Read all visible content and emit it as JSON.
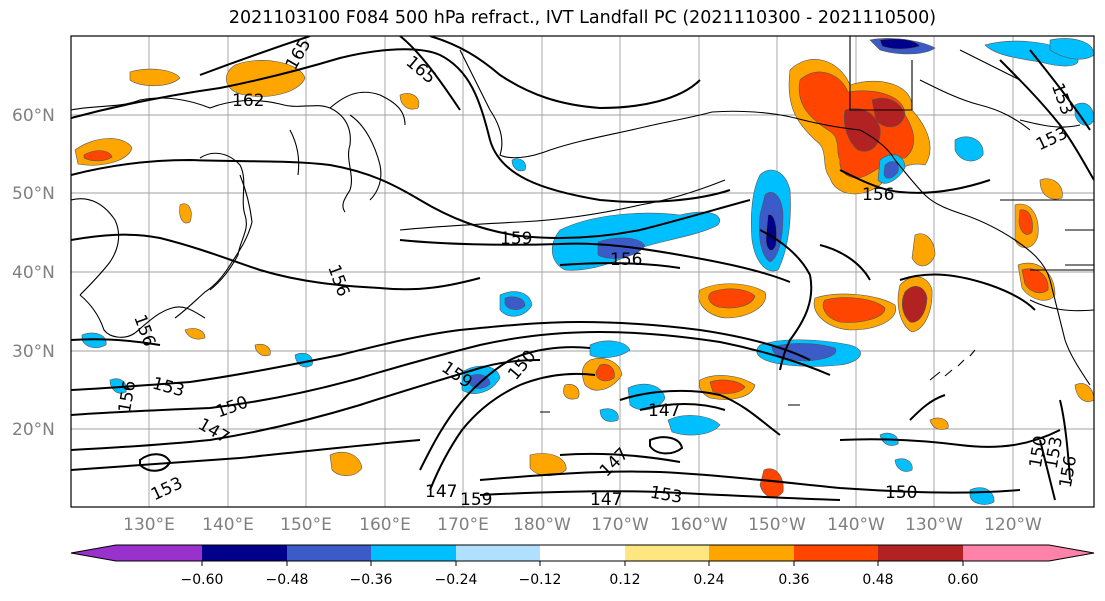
{
  "title": "2021103100 F084 500 hPa refract., IVT Landfall PC (2021110300 - 2021110500)",
  "map": {
    "lat_labels": [
      "60°N",
      "50°N",
      "40°N",
      "30°N",
      "20°N"
    ],
    "lon_labels": [
      "130°E",
      "140°E",
      "150°E",
      "160°E",
      "170°E",
      "180°W",
      "170°W",
      "160°W",
      "150°W",
      "140°W",
      "130°W",
      "120°W"
    ],
    "contour_labels": [
      "165",
      "162",
      "165",
      "159",
      "156",
      "156",
      "156",
      "156",
      "153",
      "153",
      "150",
      "147",
      "159",
      "150",
      "147",
      "147",
      "153",
      "153",
      "150",
      "150",
      "153",
      "156",
      "159",
      "147",
      "156",
      "153",
      "147"
    ]
  },
  "colorbar": {
    "tick_labels": [
      "−0.60",
      "−0.48",
      "−0.36",
      "−0.24",
      "−0.12",
      "0.12",
      "0.24",
      "0.36",
      "0.48",
      "0.60"
    ],
    "colors": [
      "#9932cc",
      "#00008b",
      "#3a5bc8",
      "#00bfff",
      "#b0e0ff",
      "#ffffff",
      "#ffe680",
      "#ffa500",
      "#ff4500",
      "#b22222",
      "#ff82ab"
    ]
  }
}
